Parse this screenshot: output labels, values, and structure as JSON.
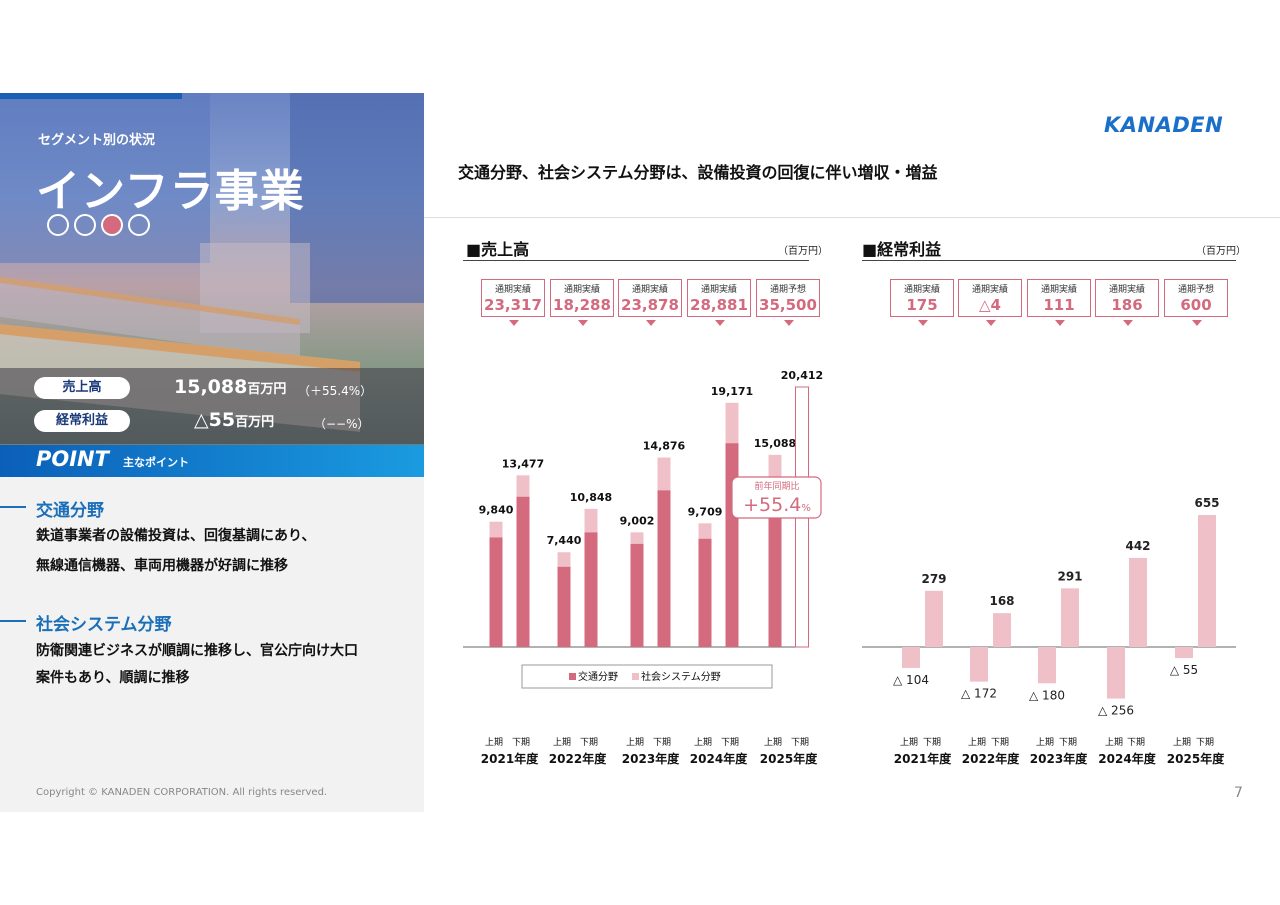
{
  "left_panel": {
    "segment_label": "セグメント別の状況",
    "segment_title": "インフラ事業",
    "sales": {
      "label": "売上高",
      "value": "15,088",
      "unit": "百万円",
      "change": "（＋55.4%）"
    },
    "profit": {
      "label": "経常利益",
      "value": "△55",
      "unit": "百万円",
      "change": "（−−%）"
    },
    "point_en": "POINT",
    "point_jp": "主なポイント",
    "sections": [
      {
        "heading": "交通分野",
        "lines": [
          "鉄道事業者の設備投資は、回復基調にあり、",
          "無線通信機器、車両用機器が好調に推移"
        ]
      },
      {
        "heading": "社会システム分野",
        "lines": [
          "防衛関連ビジネスが順調に推移し、官公庁向け大口",
          "案件もあり、順調に推移"
        ]
      }
    ],
    "copyright": "Copyright © KANADEN CORPORATION. All rights reserved."
  },
  "header": {
    "logo": "KANADEN",
    "headline": "交通分野、社会システム分野は、設備投資の回復に伴い増収・増益",
    "page_number": "7"
  },
  "colors": {
    "accent": "#d46a7e",
    "light": "#f0c0c8",
    "blue": "#1a6fb8"
  },
  "chart_data": [
    {
      "type": "bar",
      "title": "■売上高",
      "unit": "（百万円）",
      "fiscal_years": [
        "2021年度",
        "2022年度",
        "2023年度",
        "2024年度",
        "2025年度"
      ],
      "halves": [
        "上期",
        "下期"
      ],
      "totals": [
        9840,
        13477,
        7440,
        10848,
        9002,
        14876,
        9709,
        19171,
        15088,
        20412
      ],
      "total_labels": [
        "9,840",
        "13,477",
        "7,440",
        "10,848",
        "9,002",
        "14,876",
        "9,709",
        "19,171",
        "15,088",
        "20,412"
      ],
      "series": [
        {
          "name": "交通分野",
          "values": [
            8600,
            11800,
            6300,
            9000,
            8100,
            12300,
            8500,
            16000,
            11300,
            null
          ]
        },
        {
          "name": "社会システム分野",
          "values": [
            1240,
            1677,
            1140,
            1848,
            902,
            2576,
            1209,
            3171,
            3788,
            null
          ]
        }
      ],
      "forecast_index": 9,
      "full_year_boxes": [
        {
          "label": "通期実績",
          "value": "23,317"
        },
        {
          "label": "通期実績",
          "value": "18,288"
        },
        {
          "label": "通期実績",
          "value": "23,878"
        },
        {
          "label": "通期実績",
          "value": "28,881"
        },
        {
          "label": "通期予想",
          "value": "35,500"
        }
      ],
      "callout": {
        "label": "前年同期比",
        "value": "+55.4",
        "suffix": "%"
      },
      "ylim": [
        0,
        21000
      ]
    },
    {
      "type": "bar",
      "title": "■経常利益",
      "unit": "（百万円）",
      "fiscal_years": [
        "2021年度",
        "2022年度",
        "2023年度",
        "2024年度",
        "2025年度"
      ],
      "halves": [
        "上期",
        "下期"
      ],
      "values": [
        -104,
        279,
        -172,
        168,
        -180,
        291,
        -256,
        442,
        -55,
        655
      ],
      "value_labels": [
        "△ 104",
        "279",
        "△ 172",
        "168",
        "△ 180",
        "291",
        "△ 256",
        "442",
        "△ 55",
        "655"
      ],
      "full_year_boxes": [
        {
          "label": "通期実績",
          "value": "175"
        },
        {
          "label": "通期実績",
          "value": "△4"
        },
        {
          "label": "通期実績",
          "value": "111"
        },
        {
          "label": "通期実績",
          "value": "186"
        },
        {
          "label": "通期予想",
          "value": "600"
        }
      ],
      "ylim": [
        -300,
        700
      ]
    }
  ]
}
